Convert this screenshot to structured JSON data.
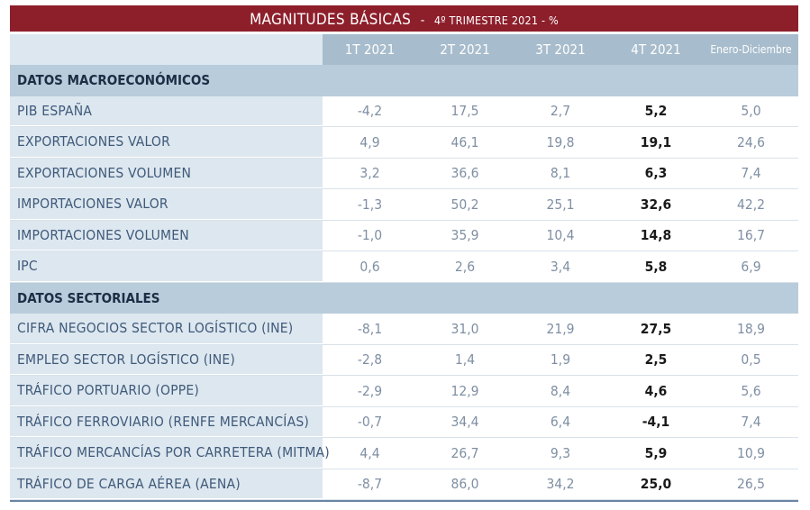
{
  "title": {
    "main": "MAGNITUDES BÁSICAS",
    "separator": "-",
    "subtitle": "4º TRIMESTRE 2021 - %"
  },
  "columns": [
    "1T 2021",
    "2T 2021",
    "3T 2021",
    "4T 2021",
    "Enero-Diciembre"
  ],
  "sections": [
    {
      "name": "DATOS MACROECONÓMICOS",
      "rows": [
        {
          "label": "PIB ESPAÑA",
          "values": [
            "-4,2",
            "17,5",
            "2,7",
            "5,2",
            "5,0"
          ]
        },
        {
          "label": "EXPORTACIONES VALOR",
          "values": [
            "4,9",
            "46,1",
            "19,8",
            "19,1",
            "24,6"
          ]
        },
        {
          "label": "EXPORTACIONES VOLUMEN",
          "values": [
            "3,2",
            "36,6",
            "8,1",
            "6,3",
            "7,4"
          ]
        },
        {
          "label": "IMPORTACIONES VALOR",
          "values": [
            "-1,3",
            "50,2",
            "25,1",
            "32,6",
            "42,2"
          ]
        },
        {
          "label": "IMPORTACIONES VOLUMEN",
          "values": [
            "-1,0",
            "35,9",
            "10,4",
            "14,8",
            "16,7"
          ]
        },
        {
          "label": "IPC",
          "values": [
            "0,6",
            "2,6",
            "3,4",
            "5,8",
            "6,9"
          ]
        }
      ]
    },
    {
      "name": "DATOS SECTORIALES",
      "rows": [
        {
          "label": "CIFRA NEGOCIOS SECTOR LOGÍSTICO (INE)",
          "values": [
            "-8,1",
            "31,0",
            "21,9",
            "27,5",
            "18,9"
          ]
        },
        {
          "label": "EMPLEO SECTOR LOGÍSTICO (INE)",
          "values": [
            "-2,8",
            "1,4",
            "1,9",
            "2,5",
            "0,5"
          ]
        },
        {
          "label": "TRÁFICO PORTUARIO (OPPE)",
          "values": [
            "-2,9",
            "12,9",
            "8,4",
            "4,6",
            "5,6"
          ]
        },
        {
          "label": "TRÁFICO FERROVIARIO (RENFE MERCANCÍAS)",
          "values": [
            "-0,7",
            "34,4",
            "6,4",
            "-4,1",
            "7,4"
          ]
        },
        {
          "label": "TRÁFICO MERCANCÍAS POR CARRETERA (MITMA)",
          "values": [
            "4,4",
            "26,7",
            "9,3",
            "5,9",
            "10,9"
          ]
        },
        {
          "label": "TRÁFICO DE CARGA AÉREA (AENA)",
          "values": [
            "-8,7",
            "86,0",
            "34,2",
            "25,0",
            "26,5"
          ]
        }
      ]
    }
  ]
}
